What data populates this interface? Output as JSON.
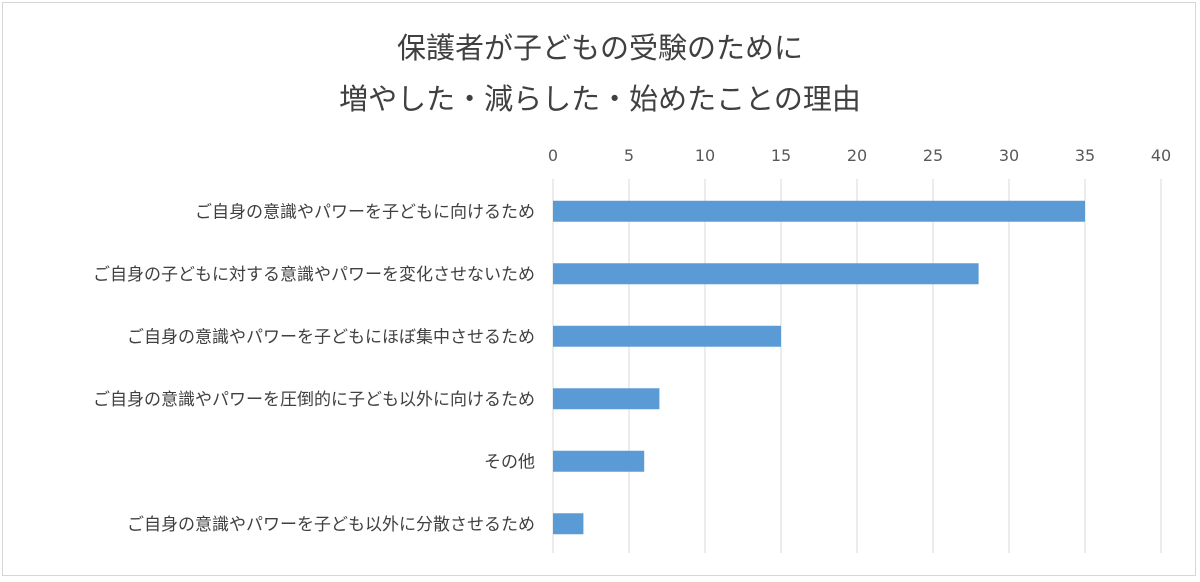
{
  "chart_data": {
    "type": "bar",
    "orientation": "horizontal",
    "title_lines": [
      "保護者が子どもの受験のために",
      "増やした・減らした・始めたことの理由"
    ],
    "categories": [
      "ご自身の意識やパワーを子どもに向けるため",
      "ご自身の子どもに対する意識やパワーを変化させないため",
      "ご自身の意識やパワーを子どもにほぼ集中させるため",
      "ご自身の意識やパワーを圧倒的に子ども以外に向けるため",
      "その他",
      "ご自身の意識やパワーを子ども以外に分散させるため"
    ],
    "values": [
      35,
      28,
      15,
      7,
      6,
      2
    ],
    "xlim": [
      0,
      40
    ],
    "xticks": [
      "0",
      "5",
      "10",
      "15",
      "20",
      "25",
      "30",
      "35",
      "40"
    ],
    "x_axis_position": "top",
    "grid": true,
    "legend": "none",
    "bar_color": "#5b9bd5"
  }
}
